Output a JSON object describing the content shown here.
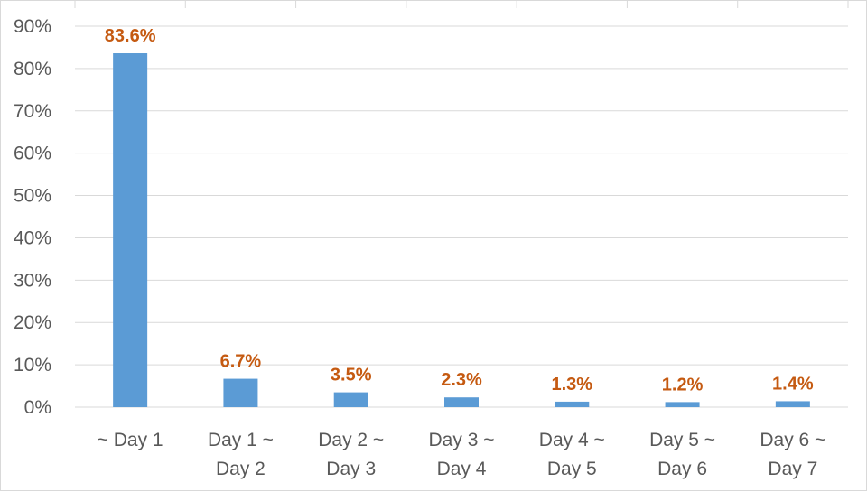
{
  "chart_data": {
    "type": "bar",
    "title": "",
    "xlabel": "",
    "ylabel": "",
    "categories": [
      [
        "~ Day 1"
      ],
      [
        "Day 1 ~",
        "Day 2"
      ],
      [
        "Day 2 ~",
        "Day 3"
      ],
      [
        "Day 3 ~",
        "Day 4"
      ],
      [
        "Day 4 ~",
        "Day 5"
      ],
      [
        "Day 5 ~",
        "Day 6"
      ],
      [
        "Day 6 ~",
        "Day 7"
      ]
    ],
    "values": [
      83.6,
      6.7,
      3.5,
      2.3,
      1.3,
      1.2,
      1.4
    ],
    "data_labels": [
      "83.6%",
      "6.7%",
      "3.5%",
      "2.3%",
      "1.3%",
      "1.2%",
      "1.4%"
    ],
    "ylim": [
      0,
      90
    ],
    "yticks": [
      0,
      10,
      20,
      30,
      40,
      50,
      60,
      70,
      80,
      90
    ],
    "ytick_labels": [
      "0%",
      "10%",
      "20%",
      "30%",
      "40%",
      "50%",
      "60%",
      "70%",
      "80%",
      "90%"
    ],
    "grid": true,
    "legend": "none",
    "bar_color": "#5b9bd5",
    "label_color": "#c55a11",
    "grid_color": "#d9d9d9",
    "tick_color": "#595959"
  }
}
